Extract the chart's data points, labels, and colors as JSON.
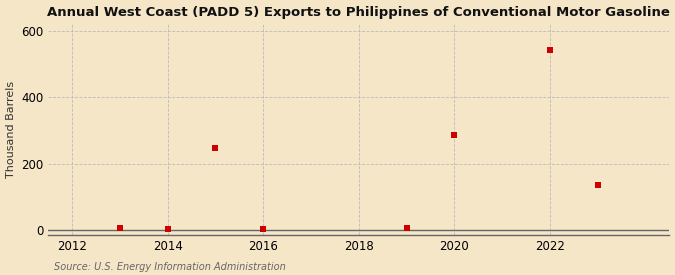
{
  "title": "Annual West Coast (PADD 5) Exports to Philippines of Conventional Motor Gasoline",
  "ylabel": "Thousand Barrels",
  "source": "Source: U.S. Energy Information Administration",
  "background_color": "#f5e6c8",
  "plot_bg_color": "#f5e6c8",
  "marker_color": "#cc0000",
  "marker": "s",
  "marker_size": 4,
  "xlim": [
    2011.5,
    2024.5
  ],
  "ylim": [
    -15,
    620
  ],
  "yticks": [
    0,
    200,
    400,
    600
  ],
  "xticks": [
    2012,
    2014,
    2016,
    2018,
    2020,
    2022
  ],
  "grid_color": "#bbbbbb",
  "data_x": [
    2013,
    2014,
    2015,
    2016,
    2019,
    2020,
    2022,
    2023
  ],
  "data_y": [
    7,
    4,
    248,
    4,
    6,
    286,
    541,
    136
  ],
  "title_fontsize": 9.5,
  "label_fontsize": 8,
  "tick_fontsize": 8.5,
  "source_fontsize": 7
}
